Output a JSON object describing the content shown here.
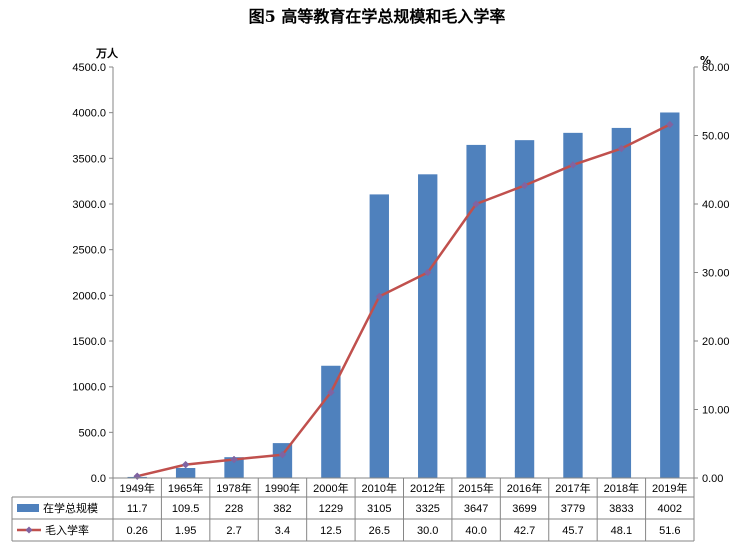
{
  "chart_data": {
    "type": "bar",
    "title": "图5  高等教育在学总规模和毛入学率",
    "categories": [
      "1949年",
      "1965年",
      "1978年",
      "1990年",
      "2000年",
      "2010年",
      "2012年",
      "2015年",
      "2016年",
      "2017年",
      "2018年",
      "2019年"
    ],
    "left_axis": {
      "unit": "万人",
      "ylim": [
        0,
        4500
      ],
      "ticks": [
        "0.0",
        "500.0",
        "1000.0",
        "1500.0",
        "2000.0",
        "2500.0",
        "3000.0",
        "3500.0",
        "4000.0",
        "4500.0"
      ]
    },
    "right_axis": {
      "unit": "%",
      "ylim": [
        0,
        60
      ],
      "ticks": [
        "0.00",
        "10.00",
        "20.00",
        "30.00",
        "40.00",
        "50.00",
        "60.00"
      ]
    },
    "series": [
      {
        "name": "在学总规模",
        "type": "bar",
        "axis": "left",
        "color": "#4f81bd",
        "values": [
          11.7,
          109.5,
          228,
          382,
          1229,
          3105,
          3325,
          3647,
          3699,
          3779,
          3833,
          4002
        ],
        "labels": [
          "11.7",
          "109.5",
          "228",
          "382",
          "1229",
          "3105",
          "3325",
          "3647",
          "3699",
          "3779",
          "3833",
          "4002"
        ]
      },
      {
        "name": "毛入学率",
        "type": "line",
        "axis": "right",
        "color": "#c0504d",
        "marker_color": "#8064a2",
        "values": [
          0.26,
          1.95,
          2.7,
          3.4,
          12.5,
          26.5,
          30.0,
          40.0,
          42.7,
          45.7,
          48.1,
          51.6
        ],
        "labels": [
          "0.26",
          "1.95",
          "2.7",
          "3.4",
          "12.5",
          "26.5",
          "30.0",
          "40.0",
          "42.7",
          "45.7",
          "48.1",
          "51.6"
        ]
      }
    ],
    "data_table": true,
    "grid": false
  }
}
